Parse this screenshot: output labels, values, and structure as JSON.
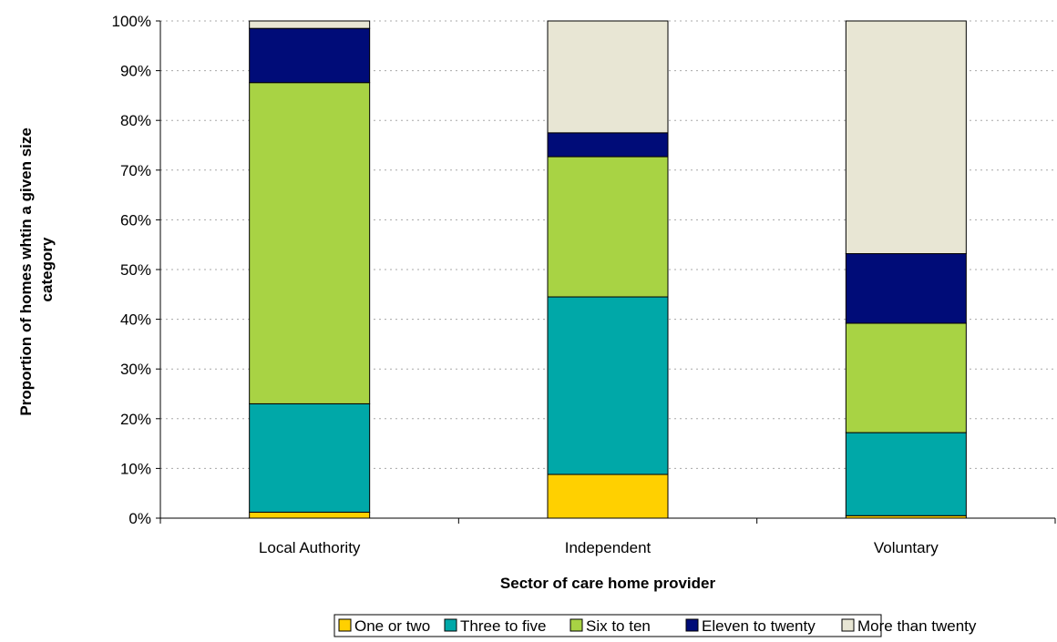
{
  "chart_data": {
    "type": "bar",
    "stacked": true,
    "percent_stacked": true,
    "title": "",
    "xlabel": "Sector of care home provider",
    "ylabel_lines": [
      "Proportion of homes whtin a given size",
      "category"
    ],
    "categories": [
      "Local Authority",
      "Independent",
      "Voluntary"
    ],
    "ylim": [
      0,
      100
    ],
    "yticks": [
      0,
      10,
      20,
      30,
      40,
      50,
      60,
      70,
      80,
      90,
      100
    ],
    "ytick_labels": [
      "0%",
      "10%",
      "20%",
      "30%",
      "40%",
      "50%",
      "60%",
      "70%",
      "80%",
      "90%",
      "100%"
    ],
    "grid": "horizontal dotted",
    "legend_position": "bottom",
    "series": [
      {
        "name": "One or two",
        "color": "#FFD000",
        "values": [
          1.2,
          8.8,
          0.5
        ]
      },
      {
        "name": "Three to five",
        "color": "#00A8A8",
        "values": [
          21.8,
          35.7,
          16.7
        ]
      },
      {
        "name": "Six to ten",
        "color": "#A8D344",
        "values": [
          64.6,
          28.2,
          22.0
        ]
      },
      {
        "name": "Eleven to twenty",
        "color": "#000C78",
        "values": [
          10.9,
          4.8,
          14.0
        ]
      },
      {
        "name": "More than twenty",
        "color": "#E8E6D4",
        "values": [
          1.5,
          22.5,
          46.8
        ]
      }
    ]
  }
}
